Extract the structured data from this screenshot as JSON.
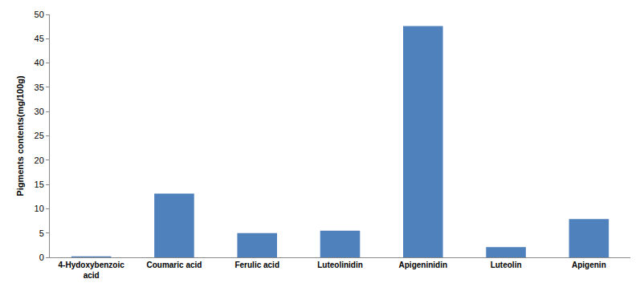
{
  "chart_data": {
    "type": "bar",
    "y_label": "Pigments contents(mg/100g)",
    "categories": [
      "4-Hydoxybenzoic acid",
      "Coumaric acid",
      "Ferulic acid",
      "Luteolinidin",
      "Apigeninidin",
      "Luteolin",
      "Apigenin"
    ],
    "values": [
      0.2,
      13.1,
      5.0,
      5.5,
      47.6,
      2.1,
      7.9
    ],
    "color": "#4f81bd",
    "ylim": [
      0,
      50
    ],
    "yticks": [
      0,
      5,
      10,
      15,
      20,
      25,
      30,
      35,
      40,
      45,
      50
    ],
    "grid": false
  }
}
